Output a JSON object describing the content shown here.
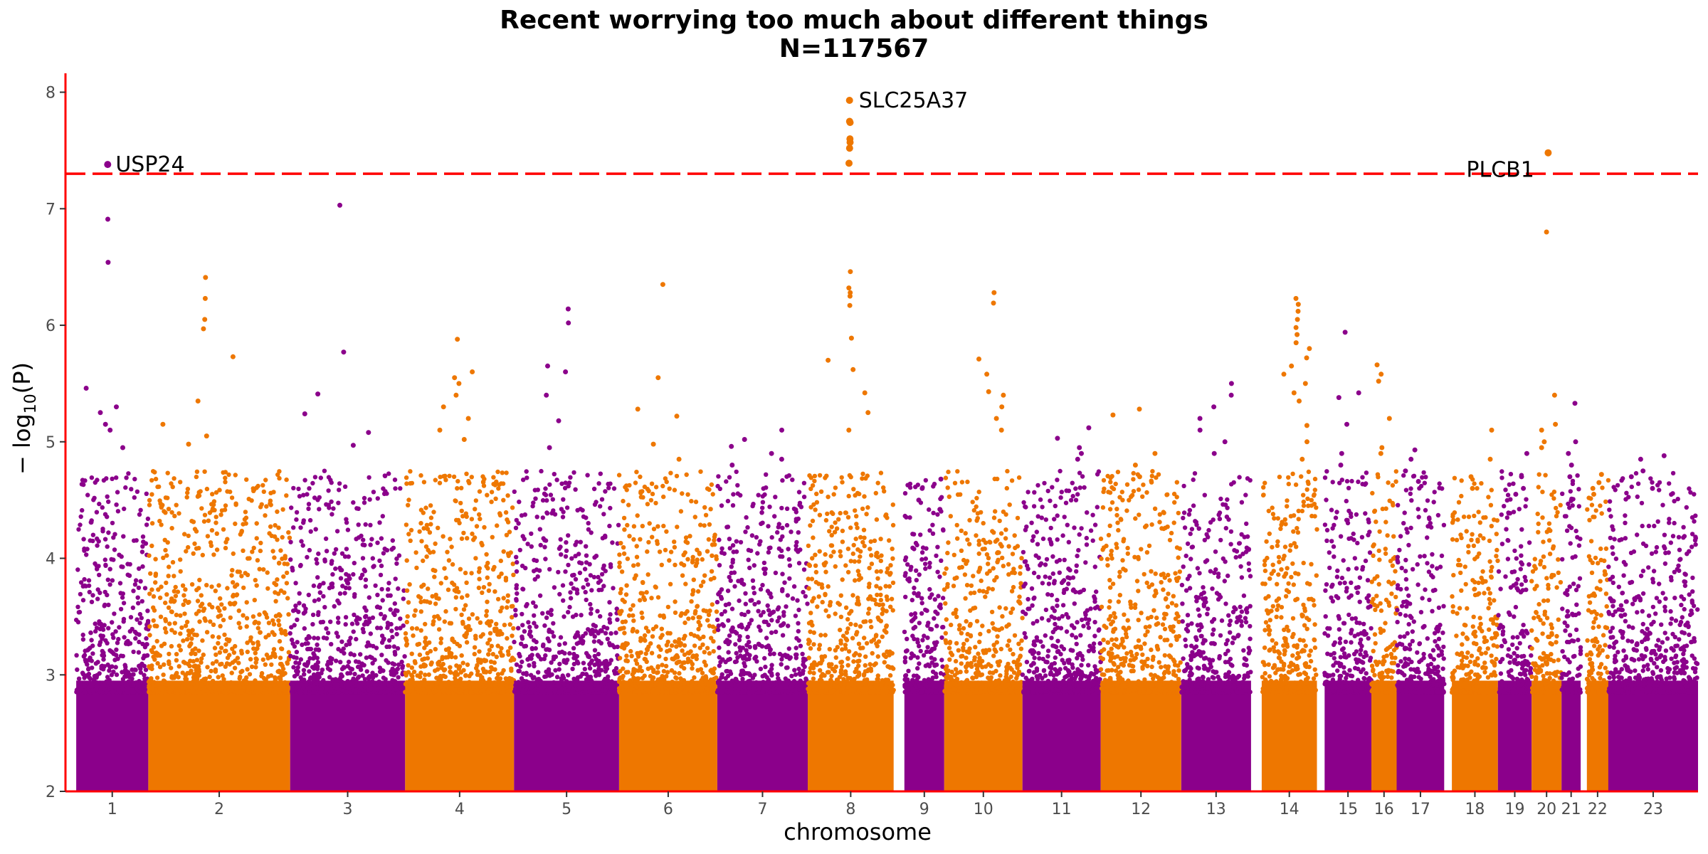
{
  "chart_data": {
    "type": "scatter",
    "subtype": "manhattan",
    "title": "Recent worrying too much about different things",
    "subtitle": "N=117567",
    "xlabel": "chromosome",
    "ylabel_prefix": "− log",
    "ylabel_sub": "10",
    "ylabel_suffix": "(P)",
    "ylim": [
      2,
      8.15
    ],
    "yticks": [
      2,
      3,
      4,
      5,
      6,
      7,
      8
    ],
    "significance_line": 7.3,
    "colors": {
      "odd": "#8B008B",
      "even": "#EE7700",
      "threshold": "#FF0000",
      "axis": "#FF0000",
      "tick_text": "#4D4D4D"
    },
    "chromosomes": [
      {
        "label": "1",
        "peak": 7.38,
        "extras": [
          6.91,
          6.54,
          5.46,
          5.3,
          5.25,
          5.15,
          5.1,
          4.95
        ]
      },
      {
        "label": "2",
        "peak": 6.41,
        "extras": [
          6.23,
          6.05,
          5.97,
          5.73,
          5.35,
          5.15,
          5.05,
          4.98
        ]
      },
      {
        "label": "3",
        "peak": 7.03,
        "extras": [
          5.77,
          5.41,
          5.24,
          5.08,
          4.97
        ]
      },
      {
        "label": "4",
        "peak": 5.88,
        "extras": [
          5.6,
          5.55,
          5.5,
          5.4,
          5.3,
          5.2,
          5.1,
          5.02
        ]
      },
      {
        "label": "5",
        "peak": 6.14,
        "extras": [
          6.02,
          5.65,
          5.6,
          5.4,
          5.18,
          4.95
        ]
      },
      {
        "label": "6",
        "peak": 6.35,
        "extras": [
          5.55,
          5.28,
          5.22,
          4.98,
          4.85
        ]
      },
      {
        "label": "7",
        "peak": 5.1,
        "extras": [
          5.02,
          4.96,
          4.9,
          4.85,
          4.8
        ]
      },
      {
        "label": "8",
        "peak": 7.93,
        "extras": [
          7.75,
          7.74,
          7.6,
          7.57,
          7.52,
          7.39,
          6.46,
          6.32,
          6.28,
          6.25,
          6.17,
          5.89,
          5.7,
          5.62,
          5.42,
          5.25,
          5.1
        ]
      },
      {
        "label": "9",
        "peak": 4.68,
        "extras": [
          4.6,
          4.5,
          4.42
        ]
      },
      {
        "label": "10",
        "peak": 6.28,
        "extras": [
          6.19,
          5.71,
          5.58,
          5.43,
          5.4,
          5.3,
          5.2,
          5.1
        ]
      },
      {
        "label": "11",
        "peak": 5.12,
        "extras": [
          5.03,
          4.95,
          4.9,
          4.85
        ]
      },
      {
        "label": "12",
        "peak": 5.28,
        "extras": [
          5.23,
          4.9,
          4.8,
          4.7
        ]
      },
      {
        "label": "13",
        "peak": 5.5,
        "extras": [
          5.4,
          5.3,
          5.2,
          5.1,
          5.0,
          4.9
        ]
      },
      {
        "label": "14",
        "peak": 6.23,
        "extras": [
          6.18,
          6.12,
          6.05,
          5.98,
          5.92,
          5.85,
          5.8,
          5.72,
          5.65,
          5.58,
          5.5,
          5.42,
          5.35,
          5.14,
          5.0,
          4.85
        ]
      },
      {
        "label": "15",
        "peak": 5.94,
        "extras": [
          5.42,
          5.38,
          5.15,
          4.9,
          4.8
        ]
      },
      {
        "label": "16",
        "peak": 5.66,
        "extras": [
          5.58,
          5.52,
          5.2,
          4.95,
          4.9
        ]
      },
      {
        "label": "17",
        "peak": 4.93,
        "extras": [
          4.85,
          4.75,
          4.66
        ]
      },
      {
        "label": "18",
        "peak": 5.1,
        "extras": [
          4.85,
          4.7,
          4.6
        ]
      },
      {
        "label": "19",
        "peak": 4.9,
        "extras": [
          4.7,
          4.6,
          4.55
        ]
      },
      {
        "label": "20",
        "peak": 7.48,
        "extras": [
          6.8,
          5.4,
          5.15,
          5.1,
          5.0,
          4.95
        ]
      },
      {
        "label": "21",
        "peak": 5.33,
        "extras": [
          5.0,
          4.9,
          4.8,
          4.7
        ]
      },
      {
        "label": "22",
        "peak": 4.72,
        "extras": [
          4.65,
          4.6,
          4.55
        ]
      },
      {
        "label": "23",
        "peak": 4.88,
        "extras": [
          4.85,
          4.75,
          4.7,
          4.6
        ]
      }
    ],
    "annotations": [
      {
        "label": "USP24",
        "chromosome": "1",
        "y": 7.38
      },
      {
        "label": "SLC25A37",
        "chromosome": "8",
        "y": 7.93
      },
      {
        "label": "PLCB1",
        "chromosome": "20",
        "y": 7.48
      }
    ]
  }
}
